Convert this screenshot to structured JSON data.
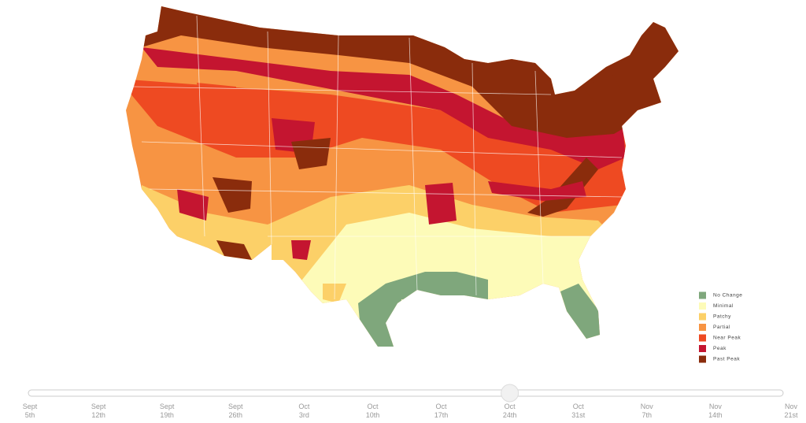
{
  "legend": [
    {
      "label": "No Change",
      "color": "#7fa77c"
    },
    {
      "label": "Minimal",
      "color": "#fdfbb8"
    },
    {
      "label": "Patchy",
      "color": "#fcd068"
    },
    {
      "label": "Partial",
      "color": "#f79443"
    },
    {
      "label": "Near Peak",
      "color": "#ee4a22"
    },
    {
      "label": "Peak",
      "color": "#c41530"
    },
    {
      "label": "Past Peak",
      "color": "#8a2c0c"
    }
  ],
  "timeline": [
    {
      "month": "Sept",
      "day": "5th"
    },
    {
      "month": "Sept",
      "day": "12th"
    },
    {
      "month": "Sept",
      "day": "19th"
    },
    {
      "month": "Sept",
      "day": "26th"
    },
    {
      "month": "Oct",
      "day": "3rd"
    },
    {
      "month": "Oct",
      "day": "10th"
    },
    {
      "month": "Oct",
      "day": "17th"
    },
    {
      "month": "Oct",
      "day": "24th"
    },
    {
      "month": "Oct",
      "day": "31st"
    },
    {
      "month": "Nov",
      "day": "7th"
    },
    {
      "month": "Nov",
      "day": "14th"
    },
    {
      "month": "Nov",
      "day": "21st"
    }
  ]
}
